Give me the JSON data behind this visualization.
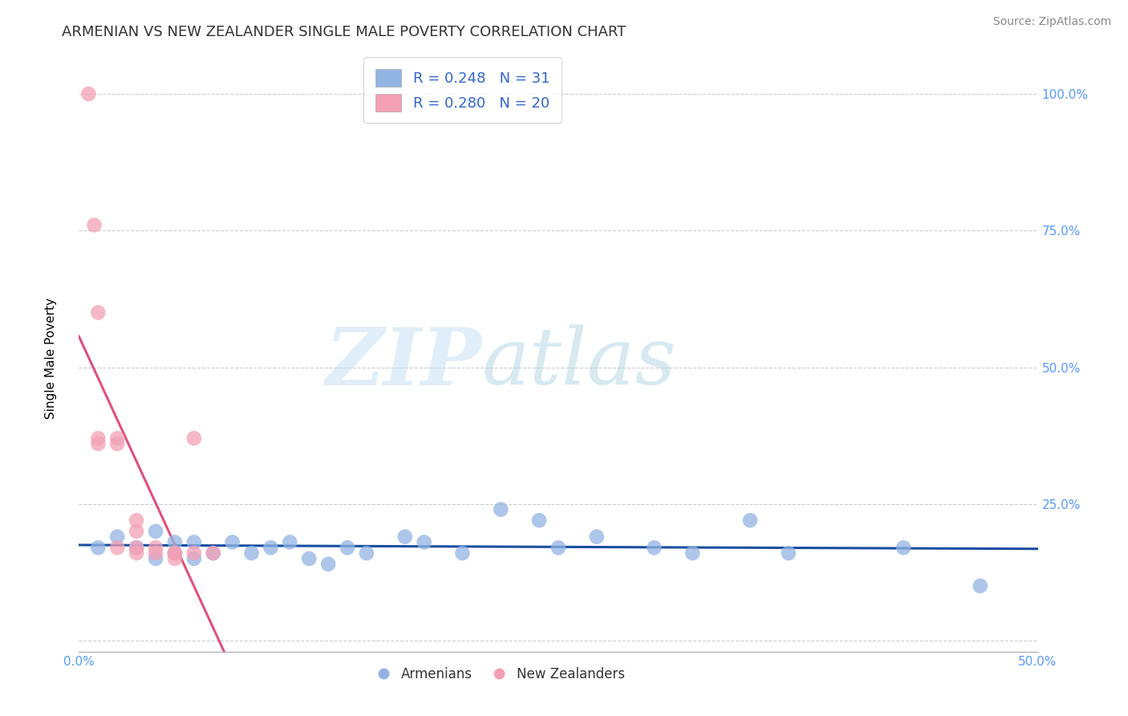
{
  "title": "ARMENIAN VS NEW ZEALANDER SINGLE MALE POVERTY CORRELATION CHART",
  "source": "Source: ZipAtlas.com",
  "ylabel": "Single Male Poverty",
  "xlim": [
    0.0,
    0.5
  ],
  "ylim": [
    -0.02,
    1.08
  ],
  "armenian_color": "#92b4e3",
  "nz_color": "#f4a0b5",
  "armenian_R": 0.248,
  "armenian_N": 31,
  "nz_R": 0.28,
  "nz_N": 20,
  "armenian_line_color": "#1a4fa0",
  "nz_line_color": "#e0507a",
  "armenian_x": [
    0.01,
    0.02,
    0.03,
    0.04,
    0.04,
    0.05,
    0.05,
    0.06,
    0.06,
    0.07,
    0.08,
    0.09,
    0.1,
    0.11,
    0.12,
    0.13,
    0.14,
    0.15,
    0.17,
    0.18,
    0.2,
    0.22,
    0.24,
    0.25,
    0.27,
    0.3,
    0.32,
    0.35,
    0.37,
    0.43,
    0.47
  ],
  "armenian_y": [
    0.17,
    0.19,
    0.17,
    0.2,
    0.15,
    0.18,
    0.16,
    0.18,
    0.15,
    0.16,
    0.18,
    0.16,
    0.17,
    0.18,
    0.15,
    0.14,
    0.17,
    0.16,
    0.19,
    0.18,
    0.16,
    0.24,
    0.22,
    0.17,
    0.19,
    0.17,
    0.16,
    0.22,
    0.16,
    0.17,
    0.1
  ],
  "nz_x": [
    0.005,
    0.008,
    0.01,
    0.01,
    0.01,
    0.02,
    0.02,
    0.02,
    0.03,
    0.03,
    0.03,
    0.03,
    0.04,
    0.04,
    0.05,
    0.05,
    0.05,
    0.06,
    0.06,
    0.07
  ],
  "nz_y": [
    1.0,
    0.76,
    0.6,
    0.37,
    0.36,
    0.37,
    0.36,
    0.17,
    0.22,
    0.2,
    0.17,
    0.16,
    0.17,
    0.16,
    0.16,
    0.15,
    0.16,
    0.37,
    0.16,
    0.16
  ],
  "ytick_positions": [
    0.0,
    0.25,
    0.5,
    0.75,
    1.0
  ],
  "ytick_labels": [
    "",
    "25.0%",
    "50.0%",
    "75.0%",
    "100.0%"
  ],
  "xtick_positions": [
    0.0,
    0.1,
    0.2,
    0.3,
    0.4,
    0.5
  ],
  "xtick_labels": [
    "0.0%",
    "",
    "",
    "",
    "",
    "50.0%"
  ]
}
